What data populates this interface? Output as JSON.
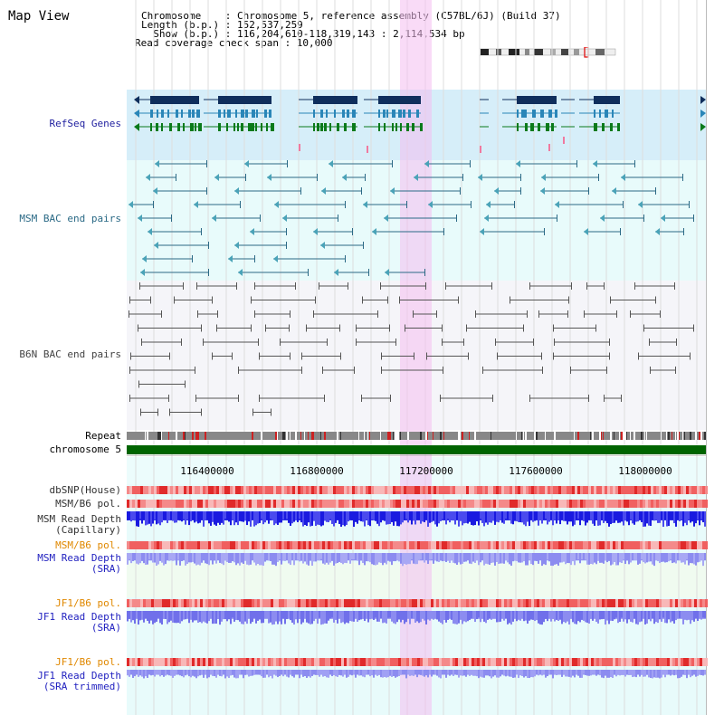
{
  "app": {
    "title": "Map View"
  },
  "header": {
    "line1": "Chromosome    : Chromosome 5, reference assembly (C57BL/6J) (Build 37)",
    "line2": "Length (b.p.) : 152,537,259",
    "line3": "  Show (b.p.) : 116,204,610-118,319,143 : 2,114,534 bp",
    "line4": "Read coverage check span : 10,000"
  },
  "tracks": {
    "refseq": {
      "label": "RefSeq Genes",
      "color": "#1f1f9f"
    },
    "msm_bac": {
      "label": "MSM BAC end pairs",
      "color": "#2b6a86"
    },
    "b6n_bac": {
      "label": "B6N BAC end pairs",
      "color": "#444444"
    },
    "repeat": {
      "label": "Repeat"
    },
    "chromosome": {
      "label": "chromosome 5",
      "color": "#006400"
    },
    "dbsnp": {
      "label": "dbSNP(House)",
      "color": "#333333"
    },
    "msm_pol": {
      "label": "MSM/B6 pol.",
      "color": "#333333"
    },
    "msm_depth_cap": {
      "label1": "MSM Read Depth",
      "label2": "(Capillary)",
      "color": "#333333"
    },
    "msm_pol2": {
      "label": "MSM/B6 pol.",
      "color": "#e08800"
    },
    "msm_depth_sra": {
      "label1": "MSM Read Depth",
      "label2": "(SRA)",
      "color": "#1f1fbf"
    },
    "jf1_pol": {
      "label": "JF1/B6 pol.",
      "color": "#e08800"
    },
    "jf1_depth_sra": {
      "label1": "JF1 Read Depth",
      "label2": "(SRA)",
      "color": "#1f1fbf"
    },
    "jf1_pol2": {
      "label": "JF1/B6 pol.",
      "color": "#e08800"
    },
    "jf1_depth_trim": {
      "label1": "JF1 Read Depth",
      "label2": "(SRA trimmed)",
      "color": "#1f1fbf"
    }
  },
  "axis": {
    "ticks": [
      "116400000",
      "116800000",
      "117200000",
      "117600000",
      "118000000"
    ]
  },
  "colors": {
    "highlight": "#f6d2f2",
    "refseq_bg": "#d6eef9",
    "bac_bg": "#e8fbfb",
    "b6n_bg": "#f4f4f8",
    "pol_light": "#f6b0b0",
    "pol_dark": "#e33b3b",
    "depth_dark": "#1a1ae0",
    "depth_light": "#8c8cf0"
  }
}
